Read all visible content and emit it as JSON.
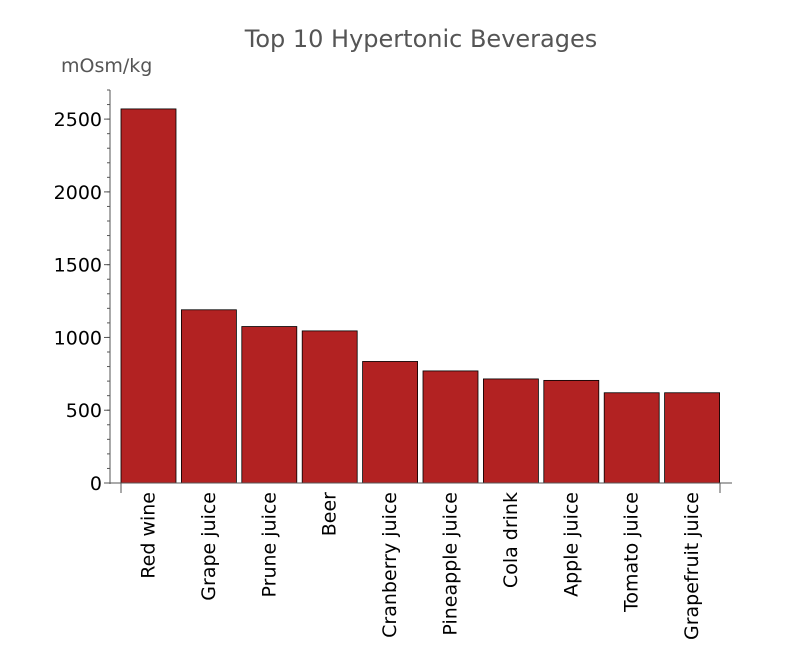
{
  "chart_data": {
    "type": "bar",
    "title": "Top 10 Hypertonic Beverages",
    "ylabel": "mOsm/kg",
    "xlabel": "",
    "categories": [
      "Red wine",
      "Grape juice",
      "Prune juice",
      "Beer",
      "Cranberry juice",
      "Pineapple juice",
      "Cola drink",
      "Apple juice",
      "Tomato juice",
      "Grapefruit juice"
    ],
    "values": [
      2570,
      1190,
      1075,
      1045,
      835,
      770,
      715,
      705,
      620,
      620
    ],
    "ylim": [
      0,
      2700
    ],
    "yticks": [
      0,
      500,
      1000,
      1500,
      2000,
      2500
    ],
    "grid": false,
    "bar_color": "#b22222"
  }
}
